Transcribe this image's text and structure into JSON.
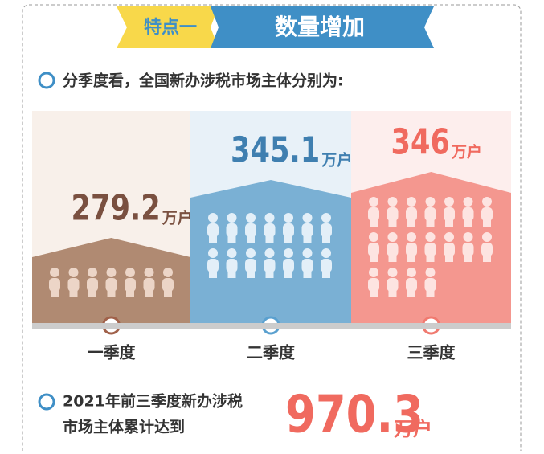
{
  "header": {
    "tag": "特点一",
    "title": "数量增加"
  },
  "intro": "分季度看，全国新办涉税市场主体分别为:",
  "quarters": [
    {
      "label": "一季度",
      "value": 279.2,
      "unit": "万户"
    },
    {
      "label": "二季度",
      "value": 345.1,
      "unit": "万户"
    },
    {
      "label": "三季度",
      "value": 346,
      "unit": "万户"
    }
  ],
  "summary": {
    "line1": "2021年前三季度新办涉税",
    "line2": "市场主体累计达到",
    "value": 970.3,
    "unit": "万户"
  }
}
